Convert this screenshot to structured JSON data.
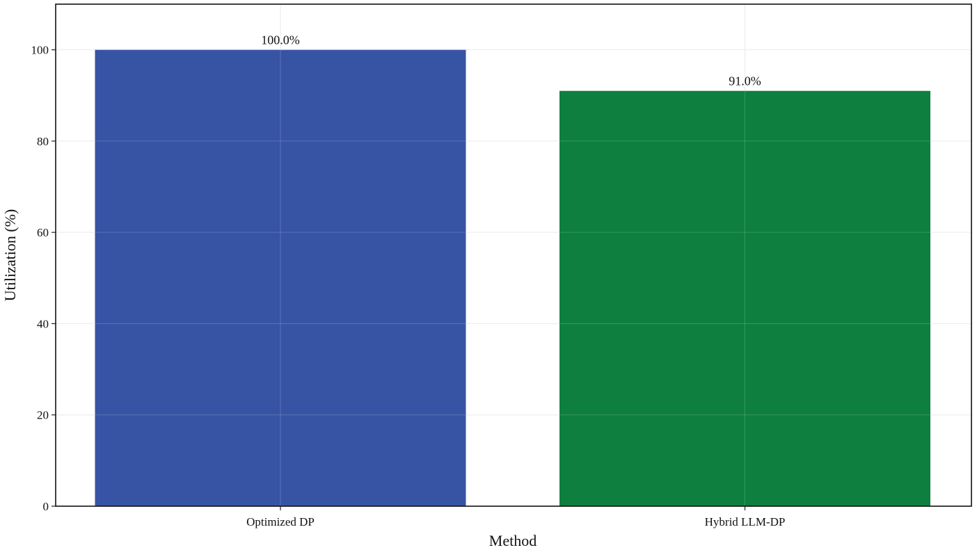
{
  "chart_data": {
    "type": "bar",
    "title": "",
    "xlabel": "Method",
    "ylabel": "Utilization (%)",
    "categories": [
      "Optimized DP",
      "Hybrid LLM-DP"
    ],
    "values": [
      100.0,
      91.0
    ],
    "data_labels": [
      "100.0%",
      "91.0%"
    ],
    "colors": [
      "#3753a4",
      "#0e7f3f"
    ],
    "ylim": [
      0,
      110
    ],
    "yticks": [
      0,
      20,
      40,
      60,
      80,
      100
    ],
    "ytick_labels": [
      "0",
      "20",
      "40",
      "60",
      "80",
      "100"
    ],
    "grid": true,
    "legend": "none"
  }
}
